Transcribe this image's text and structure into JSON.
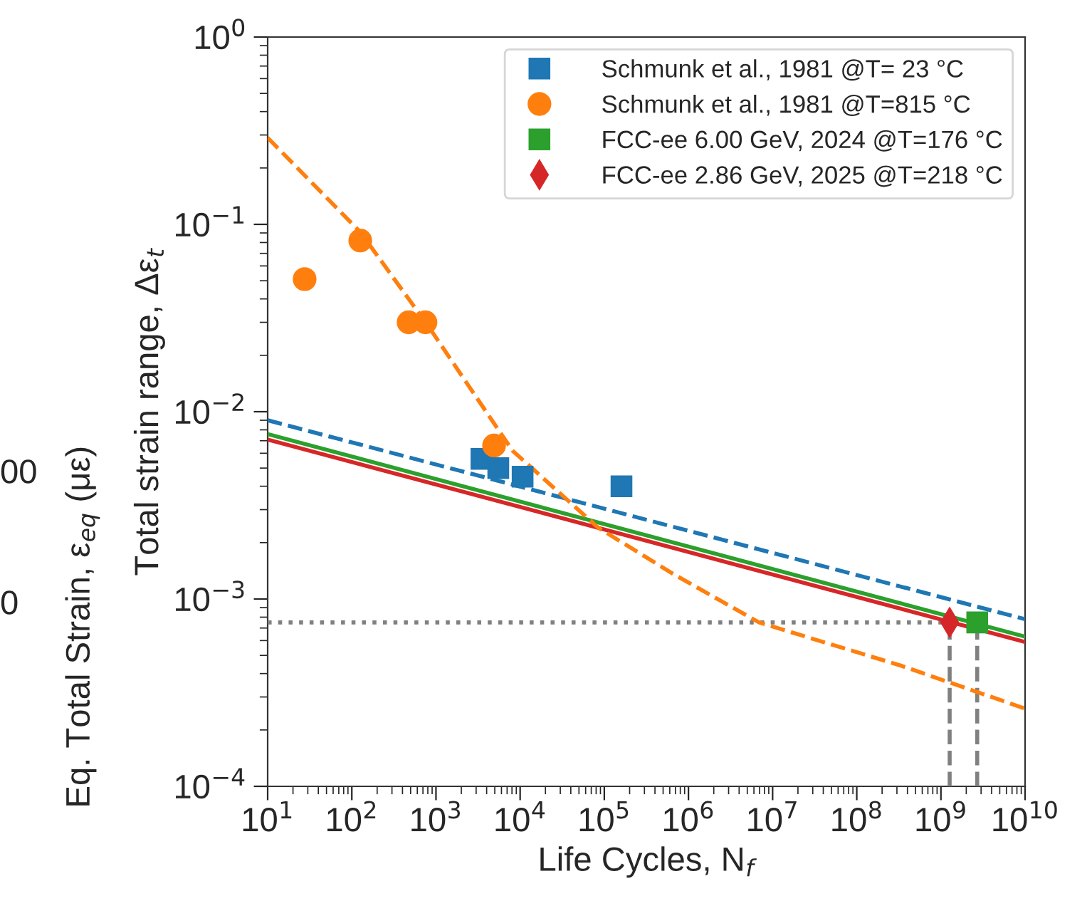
{
  "chart_data": {
    "type": "scatter",
    "xlabel": "Life Cycles, N$_{f}$",
    "ylabel": "Total strain range, Δε$_{t}$",
    "log": "xy",
    "grid": false,
    "legend": "top right",
    "xlim": [
      10,
      10000000000
    ],
    "ylim": [
      0.0001,
      1
    ],
    "xticks": [
      {
        "value": 10,
        "label": "10$^{1}$"
      },
      {
        "value": 100,
        "label": "10$^{2}$"
      },
      {
        "value": 1000,
        "label": "10$^{3}$"
      },
      {
        "value": 10000,
        "label": "10$^{4}$"
      },
      {
        "value": 100000,
        "label": "10$^{5}$"
      },
      {
        "value": 1000000,
        "label": "10$^{6}$"
      },
      {
        "value": 10000000,
        "label": "10$^{7}$"
      },
      {
        "value": 100000000,
        "label": "10$^{8}$"
      },
      {
        "value": 1000000000,
        "label": "10$^{9}$"
      },
      {
        "value": 10000000000,
        "label": "10$^{10}$"
      }
    ],
    "yticks": [
      {
        "value": 0.0001,
        "label": "10$^{−4}$"
      },
      {
        "value": 0.001,
        "label": "10$^{−3}$"
      },
      {
        "value": 0.01,
        "label": "10$^{−2}$"
      },
      {
        "value": 0.1,
        "label": "10$^{−1}$"
      },
      {
        "value": 1,
        "label": "10$^{0}$"
      }
    ],
    "series": [
      {
        "name": "Schmunk et al., 1981 @T= 23 °C",
        "color": "#1f77b4",
        "marker": "square",
        "x": [
          3470,
          5500,
          10700,
          160000
        ],
        "values": [
          0.0056,
          0.005,
          0.0045,
          0.004
        ]
      },
      {
        "name": "Schmunk et al., 1981 @T=815 °C",
        "color": "#ff7f0e",
        "marker": "circle",
        "x": [
          27.5,
          126,
          473,
          750,
          4900
        ],
        "values": [
          0.051,
          0.082,
          0.03,
          0.03,
          0.0066
        ]
      },
      {
        "name": "FCC-ee 6.00 GeV, 2024 @T=176 °C",
        "color": "#2ca02c",
        "marker": "square",
        "x": [
          2700000000
        ],
        "values": [
          0.00075
        ]
      },
      {
        "name": "FCC-ee 2.86 GeV, 2025 @T=218 °C",
        "color": "#d62728",
        "marker": "diamond",
        "x": [
          1270000000
        ],
        "values": [
          0.00075
        ]
      },
      {
        "type": "line",
        "color": "#808080",
        "line_style": "dotted",
        "x": [
          10,
          1270000000
        ],
        "values": [
          0.00075,
          0.00075
        ]
      },
      {
        "type": "line",
        "color": "#808080",
        "line_style": "dashed",
        "x": [
          1270000000,
          1270000000
        ],
        "values": [
          0.0001,
          0.00075
        ]
      },
      {
        "type": "line",
        "color": "#808080",
        "line_style": "dashed",
        "x": [
          2700000000,
          2700000000
        ],
        "values": [
          0.0001,
          0.00075
        ]
      },
      {
        "type": "line",
        "color": "#1f77b4",
        "line_style": "dashed",
        "x": [
          10,
          10000000000
        ],
        "values": [
          0.009,
          0.00078
        ]
      },
      {
        "type": "line",
        "color": "#2ca02c",
        "line_style": "solid",
        "x": [
          10,
          10000000000
        ],
        "values": [
          0.0076,
          0.00063
        ]
      },
      {
        "type": "line",
        "color": "#d62728",
        "line_style": "solid",
        "x": [
          10,
          10000000000
        ],
        "values": [
          0.0071,
          0.00059
        ]
      },
      {
        "type": "line",
        "color": "#ff7f0e",
        "line_style": "dashed",
        "x": [
          10,
          126,
          794,
          8100,
          85000,
          660000,
          6900000,
          340000000,
          10000000000
        ],
        "values": [
          0.29,
          0.091,
          0.029,
          0.0062,
          0.0024,
          0.00136,
          0.00075,
          0.00044,
          0.00026
        ]
      }
    ],
    "annotations": [
      "Eq. Total Strain, ε$_{eq}$ (με)",
      "00",
      "0"
    ]
  }
}
